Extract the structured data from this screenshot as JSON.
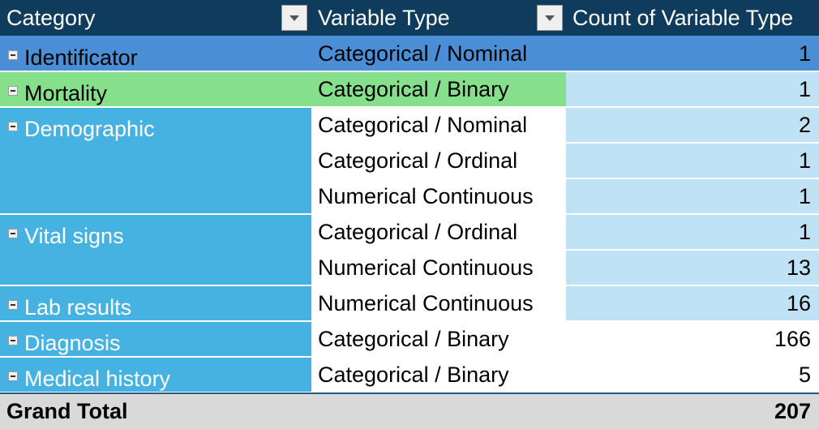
{
  "headers": {
    "category": "Category",
    "variable_type": "Variable Type",
    "count": "Count of Variable Type"
  },
  "categories": [
    {
      "name": "Identificator"
    },
    {
      "name": "Mortality"
    },
    {
      "name": "Demographic"
    },
    {
      "name": "Vital signs"
    },
    {
      "name": "Lab results"
    },
    {
      "name": "Diagnosis"
    },
    {
      "name": "Medical history"
    }
  ],
  "rows": [
    {
      "type": "Categorical / Nominal",
      "count": "1"
    },
    {
      "type": "Categorical / Binary",
      "count": "1"
    },
    {
      "type": "Categorical / Nominal",
      "count": "2"
    },
    {
      "type": "Categorical / Ordinal",
      "count": "1"
    },
    {
      "type": "Numerical Continuous",
      "count": "1"
    },
    {
      "type": "Categorical / Ordinal",
      "count": "1"
    },
    {
      "type": "Numerical Continuous",
      "count": "13"
    },
    {
      "type": "Numerical Continuous",
      "count": "16"
    },
    {
      "type": "Categorical / Binary",
      "count": "166"
    },
    {
      "type": "Categorical / Binary",
      "count": "5"
    }
  ],
  "grand_total": {
    "label": "Grand Total",
    "value": "207"
  },
  "colors": {
    "header": "#0f3b5c",
    "identificator": "#4a8fd6",
    "mortality": "#86e08b",
    "category_fill": "#46b2e2",
    "count_fill": "#bfe3f4",
    "total": "#d9d9d9"
  }
}
